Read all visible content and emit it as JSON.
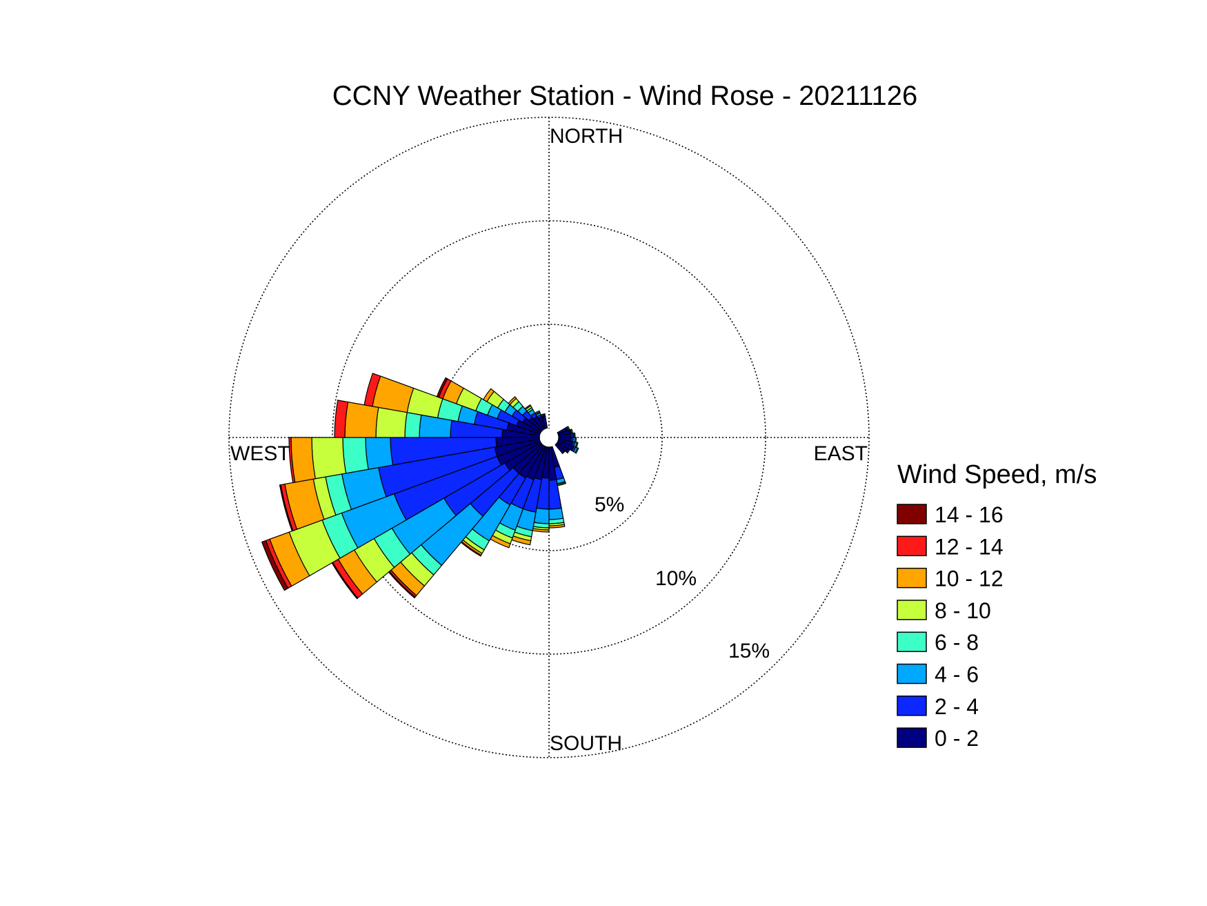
{
  "chart_data": {
    "type": "wind-rose",
    "title": "CCNY Weather Station - Wind Rose - 20211126",
    "directions": {
      "north": "NORTH",
      "east": "EAST",
      "south": "SOUTH",
      "west": "WEST"
    },
    "radial_axis": {
      "unit": "%",
      "max": 15,
      "rings": [
        5,
        10,
        15
      ],
      "ring_labels": [
        "5%",
        "10%",
        "15%"
      ]
    },
    "legend": {
      "title": "Wind Speed, m/s",
      "bins": [
        {
          "label": "14 - 16",
          "color": "#800000"
        },
        {
          "label": "12 - 14",
          "color": "#ff1a1a"
        },
        {
          "label": "10 - 12",
          "color": "#ffa500"
        },
        {
          "label": "8 - 10",
          "color": "#c8ff3c"
        },
        {
          "label": "6 - 8",
          "color": "#3cffc8"
        },
        {
          "label": "4 - 6",
          "color": "#00a8ff"
        },
        {
          "label": "2 - 4",
          "color": "#0a28ff"
        },
        {
          "label": "0 - 2",
          "color": "#000080"
        }
      ]
    },
    "bin_order_inner_to_outer": [
      "0 - 2",
      "2 - 4",
      "4 - 6",
      "6 - 8",
      "8 - 10",
      "10 - 12",
      "12 - 14",
      "14 - 16"
    ],
    "sectors": [
      {
        "dir": 65,
        "cum": [
          0.45,
          0.5,
          0.55,
          0.6,
          0.6,
          0.6,
          0.6,
          0.6
        ]
      },
      {
        "dir": 75,
        "cum": [
          0.55,
          0.6,
          0.65,
          0.7,
          0.7,
          0.7,
          0.7,
          0.7
        ]
      },
      {
        "dir": 85,
        "cum": [
          0.6,
          0.7,
          0.75,
          0.8,
          0.8,
          0.8,
          0.8,
          0.8
        ]
      },
      {
        "dir": 95,
        "cum": [
          0.6,
          0.7,
          0.8,
          0.85,
          0.85,
          0.85,
          0.85,
          0.85
        ]
      },
      {
        "dir": 105,
        "cum": [
          0.7,
          0.8,
          0.9,
          0.95,
          0.95,
          0.95,
          0.95,
          0.95
        ]
      },
      {
        "dir": 115,
        "cum": [
          0.8,
          0.9,
          1.0,
          1.05,
          1.05,
          1.05,
          1.05,
          1.05
        ]
      },
      {
        "dir": 125,
        "cum": [
          0.6,
          0.65,
          0.7,
          0.7,
          0.7,
          0.7,
          0.7,
          0.7
        ]
      },
      {
        "dir": 135,
        "cum": [
          0.5,
          0.55,
          0.55,
          0.55,
          0.55,
          0.55,
          0.55,
          0.55
        ]
      },
      {
        "dir": 165,
        "cum": [
          1.0,
          1.6,
          1.8,
          1.85,
          1.9,
          1.9,
          1.9,
          1.9
        ]
      },
      {
        "dir": 175,
        "cum": [
          1.6,
          3.0,
          3.5,
          3.7,
          3.8,
          3.9,
          3.9,
          3.9
        ]
      },
      {
        "dir": 185,
        "cum": [
          1.5,
          3.0,
          3.7,
          3.9,
          4.0,
          4.1,
          4.1,
          4.1
        ]
      },
      {
        "dir": 195,
        "cum": [
          1.6,
          3.2,
          4.1,
          4.4,
          4.6,
          4.8,
          4.8,
          4.8
        ]
      },
      {
        "dir": 205,
        "cum": [
          1.7,
          3.2,
          4.3,
          4.7,
          5.0,
          5.2,
          5.2,
          5.2
        ]
      },
      {
        "dir": 215,
        "cum": [
          1.8,
          3.3,
          5.3,
          5.8,
          6.0,
          6.1,
          6.15,
          6.15
        ]
      },
      {
        "dir": 225,
        "cum": [
          1.8,
          4.5,
          7.6,
          8.2,
          8.9,
          9.5,
          9.6,
          9.65
        ]
      },
      {
        "dir": 235,
        "cum": [
          2.0,
          5.4,
          8.3,
          9.3,
          10.4,
          11.3,
          11.6,
          11.65
        ]
      },
      {
        "dir": 245,
        "cum": [
          2.2,
          7.5,
          10.2,
          11.2,
          12.9,
          13.9,
          14.1,
          14.3
        ]
      },
      {
        "dir": 255,
        "cum": [
          2.2,
          7.9,
          9.7,
          10.5,
          11.1,
          12.5,
          12.7,
          12.75
        ]
      },
      {
        "dir": 265,
        "cum": [
          2.1,
          7.2,
          8.4,
          9.5,
          11.0,
          12.0,
          12.1,
          12.1
        ]
      },
      {
        "dir": 275,
        "cum": [
          1.8,
          4.3,
          5.8,
          6.5,
          7.9,
          9.4,
          9.9,
          9.9
        ]
      },
      {
        "dir": 285,
        "cum": [
          1.6,
          3.2,
          4.0,
          5.0,
          6.5,
          8.2,
          8.6,
          8.6
        ]
      },
      {
        "dir": 295,
        "cum": [
          1.2,
          2.2,
          2.7,
          3.3,
          4.3,
          5.0,
          5.2,
          5.3
        ]
      },
      {
        "dir": 305,
        "cum": [
          1.0,
          1.6,
          2.0,
          2.4,
          3.0,
          3.2,
          3.2,
          3.2
        ]
      },
      {
        "dir": 315,
        "cum": [
          0.8,
          1.2,
          1.5,
          1.8,
          2.0,
          2.1,
          2.1,
          2.1
        ]
      },
      {
        "dir": 325,
        "cum": [
          0.7,
          0.9,
          1.1,
          1.2,
          1.3,
          1.35,
          1.35,
          1.35
        ]
      },
      {
        "dir": 335,
        "cum": [
          0.6,
          0.7,
          0.8,
          0.85,
          0.9,
          0.9,
          0.9,
          0.9
        ]
      },
      {
        "dir": 345,
        "cum": [
          0.55,
          0.6,
          0.65,
          0.7,
          0.7,
          0.7,
          0.7,
          0.7
        ]
      }
    ]
  }
}
